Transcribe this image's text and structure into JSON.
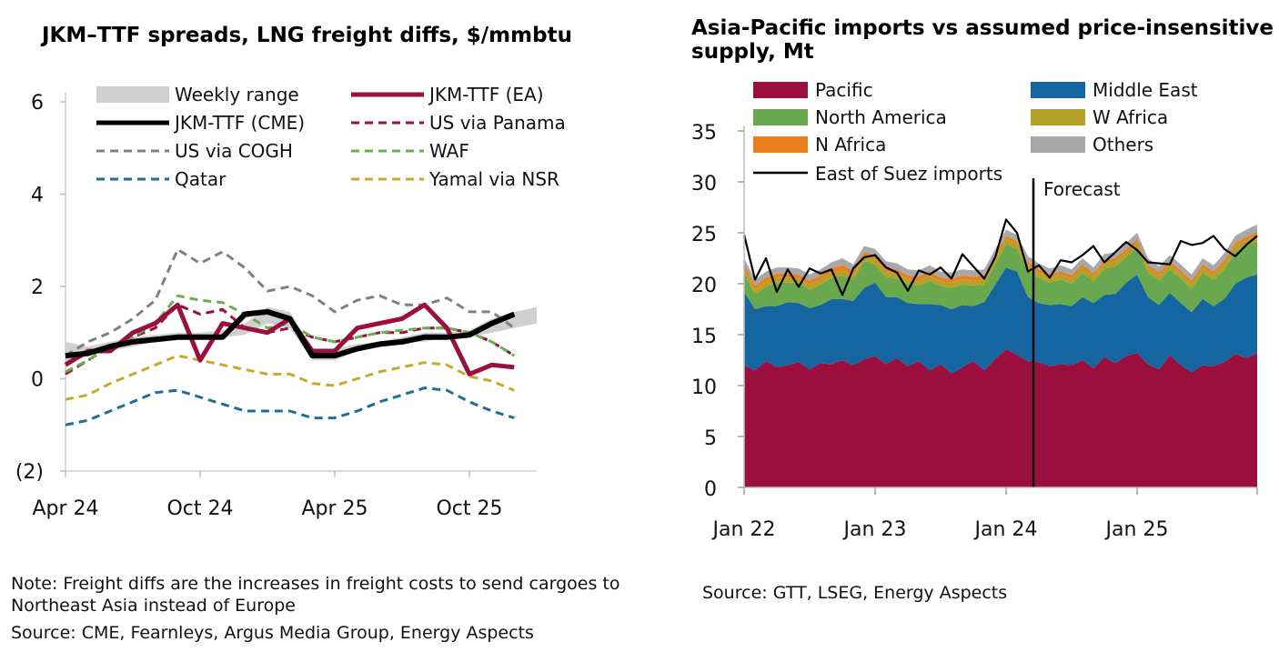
{
  "left_title": "JKM–TTF spreads, LNG freight diffs, $/mmbtu",
  "left_note": "Note: Freight diffs are the increases in freight costs to send cargoes to Northeast Asia instead of Europe",
  "left_source": "Source: CME, Fearnleys, Argus Media Group, Energy Aspects",
  "right_title": "Asia-Pacific imports vs assumed price-insensitive supply, Mt",
  "right_source": "Source: GTT, LSEG, Energy Aspects",
  "chart_data": [
    {
      "type": "line",
      "title": "JKM–TTF spreads, LNG freight diffs, $/mmbtu",
      "xlabel": "",
      "ylabel": "",
      "ylim": [
        -2,
        6
      ],
      "y_ticks": [
        6,
        4,
        2,
        0,
        -2
      ],
      "y_tick_labels": [
        "6",
        "4",
        "2",
        "0",
        "(2)"
      ],
      "x_ticks": [
        0,
        6,
        12,
        18
      ],
      "x_tick_labels": [
        "Apr 24",
        "Oct 24",
        "Apr 25",
        "Oct 25"
      ],
      "x": [
        0,
        1,
        2,
        3,
        4,
        5,
        6,
        7,
        8,
        9,
        10,
        11,
        12,
        13,
        14,
        15,
        16,
        17,
        18,
        19,
        20,
        21
      ],
      "legend_position": "top",
      "band": {
        "name": "Weekly range",
        "color": "#d0d0d0",
        "lower": [
          0.3,
          0.5,
          0.6,
          0.7,
          0.8,
          0.85,
          0.9,
          0.9,
          0.95,
          1.2,
          1.1,
          0.4,
          0.4,
          0.6,
          0.7,
          0.8,
          0.8,
          0.9,
          0.9,
          1.0,
          1.1,
          1.2
        ],
        "upper": [
          0.8,
          0.7,
          0.8,
          0.9,
          0.95,
          1.0,
          1.0,
          1.05,
          1.2,
          1.55,
          1.45,
          0.65,
          0.65,
          0.75,
          0.8,
          0.9,
          1.0,
          1.0,
          1.05,
          1.3,
          1.45,
          1.55
        ]
      },
      "series": [
        {
          "name": "JKM-TTF (EA)",
          "color": "#9b0f3e",
          "style": "solid",
          "width": 5,
          "values": [
            0.3,
            0.6,
            0.6,
            1.0,
            1.2,
            1.6,
            0.4,
            1.2,
            1.1,
            1.0,
            1.3,
            0.6,
            0.6,
            1.1,
            1.2,
            1.3,
            1.6,
            1.1,
            0.1,
            0.3,
            0.25,
            null
          ]
        },
        {
          "name": "JKM-TTF (CME)",
          "color": "#000000",
          "style": "solid",
          "width": 6,
          "values": [
            0.5,
            0.55,
            0.7,
            0.8,
            0.85,
            0.9,
            0.9,
            0.9,
            1.4,
            1.45,
            1.3,
            0.5,
            0.5,
            0.65,
            0.75,
            0.8,
            0.9,
            0.9,
            0.95,
            1.2,
            1.4,
            null
          ]
        },
        {
          "name": "US via Panama",
          "color": "#9b0f3e",
          "style": "dashed",
          "width": 3,
          "values": [
            0.1,
            0.4,
            0.7,
            0.9,
            1.1,
            1.6,
            1.4,
            1.5,
            1.1,
            1.0,
            1.1,
            0.9,
            0.8,
            0.9,
            1.0,
            1.0,
            1.1,
            1.1,
            1.0,
            0.8,
            0.5,
            null
          ]
        },
        {
          "name": "US via COGH",
          "color": "#808080",
          "style": "dashed",
          "width": 3,
          "values": [
            0.5,
            0.8,
            1.0,
            1.3,
            1.7,
            2.8,
            2.5,
            2.75,
            2.4,
            1.9,
            2.0,
            1.8,
            1.45,
            1.7,
            1.8,
            1.6,
            1.6,
            1.75,
            1.45,
            1.45,
            1.1,
            null
          ]
        },
        {
          "name": "WAF",
          "color": "#6ab04c",
          "style": "dashed",
          "width": 3,
          "values": [
            0.15,
            0.4,
            0.7,
            0.9,
            1.2,
            1.8,
            1.7,
            1.65,
            1.4,
            1.1,
            1.2,
            0.9,
            0.8,
            0.9,
            1.0,
            1.05,
            1.1,
            1.1,
            1.0,
            0.8,
            0.5,
            null
          ]
        },
        {
          "name": "Qatar",
          "color": "#1f6e96",
          "style": "dashed",
          "width": 3,
          "values": [
            -1.0,
            -0.9,
            -0.7,
            -0.5,
            -0.3,
            -0.25,
            -0.4,
            -0.55,
            -0.7,
            -0.7,
            -0.7,
            -0.85,
            -0.85,
            -0.7,
            -0.5,
            -0.35,
            -0.2,
            -0.25,
            -0.5,
            -0.7,
            -0.85,
            null
          ]
        },
        {
          "name": "Yamal via NSR",
          "color": "#c8a92b",
          "style": "dashed",
          "width": 3,
          "values": [
            -0.45,
            -0.35,
            -0.1,
            0.1,
            0.3,
            0.5,
            0.4,
            0.3,
            0.2,
            0.1,
            0.1,
            -0.1,
            -0.15,
            0.0,
            0.15,
            0.25,
            0.35,
            0.3,
            0.05,
            -0.05,
            -0.25,
            null
          ]
        }
      ],
      "legend_order": [
        "Weekly range",
        "JKM-TTF (EA)",
        "JKM-TTF (CME)",
        "US via Panama",
        "US via COGH",
        "WAF",
        "Qatar",
        "Yamal via NSR"
      ]
    },
    {
      "type": "area",
      "title": "Asia-Pacific imports vs assumed price-insensitive supply, Mt",
      "xlabel": "",
      "ylabel": "",
      "ylim": [
        0,
        35
      ],
      "y_ticks": [
        0,
        5,
        10,
        15,
        20,
        25,
        30,
        35
      ],
      "y_tick_labels": [
        "0",
        "5",
        "10",
        "15",
        "20",
        "25",
        "30",
        "35"
      ],
      "x_start": "Jan 22",
      "x_count": 48,
      "x_ticks": [
        0,
        12,
        24,
        36
      ],
      "x_tick_labels": [
        "Jan 22",
        "Jan 23",
        "Jan 24",
        "Jan 25"
      ],
      "legend_position": "top",
      "forecast_label": "Forecast",
      "forecast_x": 26.5,
      "series": [
        {
          "name": "Pacific",
          "color": "#9b0f3e",
          "values": [
            12.0,
            11.5,
            12.4,
            11.8,
            12.0,
            12.3,
            11.6,
            12.2,
            12.1,
            12.5,
            12.0,
            12.6,
            12.9,
            12.1,
            12.7,
            11.9,
            12.4,
            11.5,
            12.1,
            11.2,
            11.8,
            12.4,
            11.5,
            12.6,
            13.6,
            13.0,
            12.4,
            12.3,
            11.9,
            12.1,
            12.0,
            12.5,
            11.7,
            12.8,
            12.2,
            12.9,
            13.2,
            12.1,
            11.6,
            13.0,
            12.0,
            11.3,
            12.0,
            11.9,
            12.3,
            13.1,
            12.7,
            13.2
          ]
        },
        {
          "name": "Middle East",
          "color": "#1565a0",
          "values": [
            7.2,
            6.0,
            5.4,
            6.0,
            6.2,
            5.8,
            6.0,
            5.7,
            6.4,
            6.0,
            6.3,
            7.0,
            7.2,
            6.6,
            6.0,
            6.2,
            5.6,
            6.5,
            5.8,
            6.3,
            6.1,
            5.4,
            6.7,
            7.3,
            8.0,
            8.2,
            6.3,
            5.8,
            6.0,
            5.9,
            5.8,
            6.2,
            6.4,
            6.1,
            6.8,
            7.2,
            7.7,
            6.6,
            6.3,
            6.1,
            6.1,
            5.9,
            6.5,
            5.9,
            6.2,
            6.9,
            7.9,
            7.7
          ]
        },
        {
          "name": "North America",
          "color": "#6aa84f",
          "values": [
            1.8,
            1.5,
            1.9,
            2.3,
            1.9,
            2.0,
            1.8,
            2.0,
            2.1,
            2.3,
            2.1,
            2.6,
            1.8,
            2.0,
            1.8,
            1.9,
            1.8,
            2.3,
            1.9,
            2.1,
            2.0,
            2.0,
            1.7,
            2.0,
            2.3,
            2.2,
            2.6,
            2.5,
            2.2,
            2.4,
            2.2,
            2.4,
            2.1,
            2.6,
            2.7,
            2.5,
            2.7,
            2.4,
            2.4,
            2.3,
            2.4,
            2.3,
            2.6,
            2.6,
            2.9,
            3.1,
            3.1,
            3.3
          ]
        },
        {
          "name": "W Africa",
          "color": "#b5a125",
          "values": [
            0.5,
            0.4,
            0.5,
            0.5,
            0.5,
            0.4,
            0.5,
            0.5,
            0.5,
            0.5,
            0.5,
            0.5,
            0.5,
            0.5,
            0.5,
            0.4,
            0.5,
            0.5,
            0.4,
            0.5,
            0.5,
            0.5,
            0.5,
            0.5,
            0.5,
            0.5,
            0.5,
            0.5,
            0.5,
            0.5,
            0.5,
            0.5,
            0.5,
            0.5,
            0.5,
            0.5,
            0.5,
            0.5,
            0.5,
            0.5,
            0.5,
            0.5,
            0.5,
            0.5,
            0.6,
            0.6,
            0.6,
            0.6
          ]
        },
        {
          "name": "N Africa",
          "color": "#e8801e",
          "values": [
            0.4,
            0.4,
            0.4,
            0.4,
            0.4,
            0.4,
            0.4,
            0.4,
            0.4,
            0.5,
            0.4,
            0.4,
            0.4,
            0.4,
            0.4,
            0.4,
            0.4,
            0.4,
            0.4,
            0.4,
            0.4,
            0.4,
            0.4,
            0.4,
            0.3,
            0.3,
            0.3,
            0.3,
            0.3,
            0.3,
            0.3,
            0.3,
            0.3,
            0.3,
            0.3,
            0.3,
            0.3,
            0.3,
            0.3,
            0.3,
            0.3,
            0.3,
            0.3,
            0.3,
            0.3,
            0.3,
            0.3,
            0.3
          ]
        },
        {
          "name": "Others",
          "color": "#a8a8a8",
          "values": [
            0.6,
            0.6,
            0.6,
            0.6,
            0.6,
            0.6,
            0.6,
            0.6,
            0.6,
            0.7,
            0.6,
            0.6,
            0.6,
            0.6,
            0.6,
            0.6,
            0.6,
            0.6,
            0.6,
            0.6,
            0.6,
            0.6,
            0.6,
            0.6,
            0.6,
            0.6,
            0.6,
            0.6,
            0.6,
            0.6,
            0.6,
            0.6,
            0.6,
            0.6,
            0.6,
            0.6,
            0.6,
            0.6,
            0.6,
            0.6,
            0.6,
            0.6,
            0.6,
            0.6,
            0.7,
            0.7,
            0.7,
            0.7
          ]
        }
      ],
      "line": {
        "name": "East of Suez imports",
        "color": "#000000",
        "values": [
          24.8,
          20.4,
          22.5,
          19.2,
          21.4,
          19.7,
          21.5,
          21.0,
          21.4,
          18.9,
          21.5,
          22.6,
          22.8,
          21.6,
          21.1,
          19.3,
          21.3,
          20.9,
          21.6,
          20.5,
          22.9,
          21.7,
          20.5,
          22.6,
          26.3,
          25.0,
          21.2,
          21.8,
          20.6,
          22.3,
          22.1,
          22.8,
          23.7,
          22.1,
          23.1,
          24.1,
          23.3,
          22.1,
          22.0,
          21.9,
          24.2,
          23.8,
          24.0,
          24.7,
          23.4,
          22.7,
          23.8,
          24.7
        ]
      },
      "legend_order": [
        "Pacific",
        "Middle East",
        "North America",
        "W Africa",
        "N Africa",
        "Others",
        "East of Suez imports"
      ]
    }
  ]
}
